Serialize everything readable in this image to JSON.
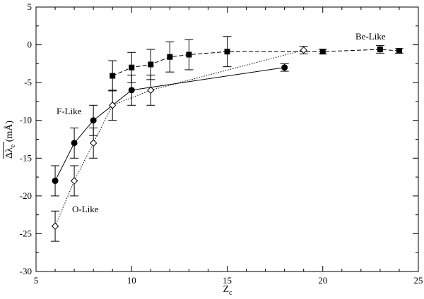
{
  "chart_data": {
    "type": "line",
    "xlabel": "Z",
    "xlabel_sub": "c",
    "ylabel_main": "Δλ",
    "ylabel_sub": "e",
    "ylabel_unit": " (mÅ)",
    "xlim": [
      5,
      25
    ],
    "ylim": [
      -30,
      5
    ],
    "xticks": [
      "5",
      "10",
      "15",
      "20",
      "25"
    ],
    "yticks": [
      "5",
      "0",
      "-5",
      "-10",
      "-15",
      "-20",
      "-25",
      "-30"
    ],
    "grid": false,
    "legend": "none",
    "annotations": [
      {
        "text": "F-Like",
        "key": "f_like"
      },
      {
        "text": "O-Like",
        "key": "o_like"
      },
      {
        "text": "Be-Like",
        "key": "be_like"
      }
    ],
    "series": [
      {
        "name": "F-Like",
        "marker": "circle",
        "line": "solid",
        "points": [
          {
            "x": 6,
            "y": -18,
            "err": 2
          },
          {
            "x": 7,
            "y": -13,
            "err": 2
          },
          {
            "x": 8,
            "y": -10,
            "err": 2
          },
          {
            "x": 10,
            "y": -6,
            "err": 2
          },
          {
            "x": 18,
            "y": -3,
            "err": 0.5
          }
        ]
      },
      {
        "name": "O-Like",
        "marker": "diamond",
        "line": "dotted",
        "points": [
          {
            "x": 6,
            "y": -24,
            "err": 2
          },
          {
            "x": 7,
            "y": -18,
            "err": 2
          },
          {
            "x": 8,
            "y": -13,
            "err": 2
          },
          {
            "x": 9,
            "y": -8,
            "err": 2
          },
          {
            "x": 11,
            "y": -6,
            "err": 2
          },
          {
            "x": 19,
            "y": -0.7,
            "err": 0.5
          }
        ]
      },
      {
        "name": "Be-Like",
        "marker": "square",
        "line": "dashed",
        "points": [
          {
            "x": 9,
            "y": -4.1,
            "err": 2
          },
          {
            "x": 10,
            "y": -3,
            "err": 2
          },
          {
            "x": 11,
            "y": -2.6,
            "err": 2
          },
          {
            "x": 12,
            "y": -1.6,
            "err": 2
          },
          {
            "x": 13,
            "y": -1.3,
            "err": 2
          },
          {
            "x": 15,
            "y": -0.9,
            "err": 2
          },
          {
            "x": 20,
            "y": -0.9,
            "err": 0.3
          },
          {
            "x": 23,
            "y": -0.6,
            "err": 0.5
          },
          {
            "x": 24,
            "y": -0.8,
            "err": 0.3
          }
        ]
      }
    ]
  }
}
